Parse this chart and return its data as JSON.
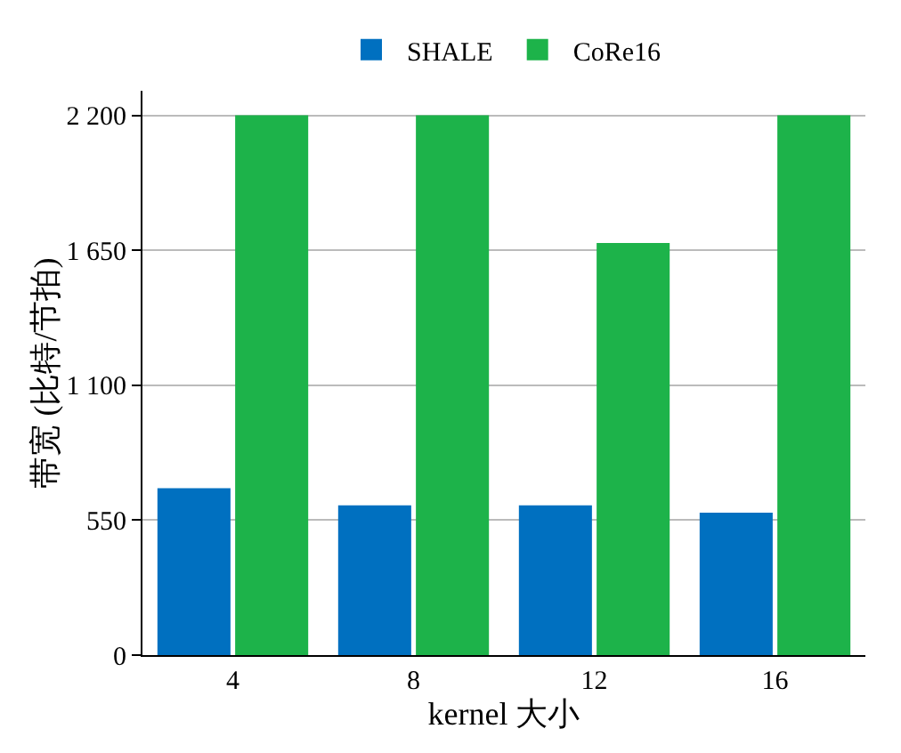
{
  "chart_data": {
    "type": "bar",
    "xlabel": "kernel 大小",
    "ylabel": "带宽 (比特/节拍)",
    "categories": [
      "4",
      "8",
      "12",
      "16"
    ],
    "series": [
      {
        "name": "SHALE",
        "color": "#0070c0",
        "values": [
          680,
          610,
          610,
          580
        ]
      },
      {
        "name": "CoRe16",
        "color": "#1db34a",
        "values": [
          2200,
          2200,
          1680,
          2200
        ]
      }
    ],
    "ylim": [
      0,
      2300
    ],
    "yticks": [
      0,
      550,
      {
        "value": 1100,
        "label": "1 100"
      },
      {
        "value": 1650,
        "label": "1 650"
      },
      {
        "value": 2200,
        "label": "2 200"
      }
    ],
    "grid": "y",
    "legend": "top"
  }
}
